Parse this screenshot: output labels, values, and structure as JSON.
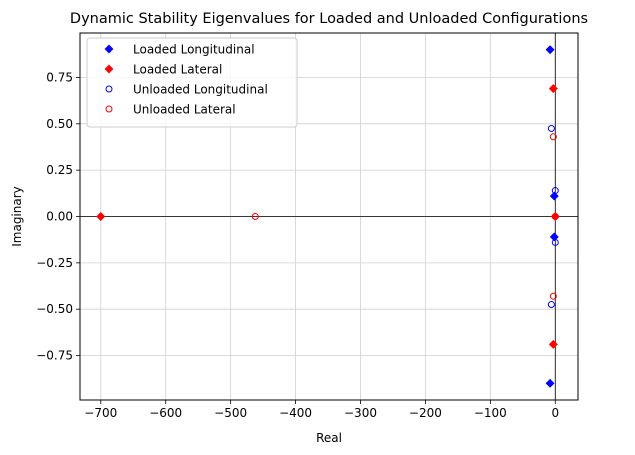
{
  "chart_data": {
    "type": "scatter",
    "title": "Dynamic Stability Eigenvalues for Loaded and Unloaded Configurations",
    "xlabel": "Real",
    "ylabel": "Imaginary",
    "xlim": [
      -732,
      35
    ],
    "ylim": [
      -0.99,
      0.99
    ],
    "xticks": [
      -700,
      -600,
      -500,
      -400,
      -300,
      -200,
      -100,
      0
    ],
    "yticks": [
      -0.75,
      -0.5,
      -0.25,
      0.0,
      0.25,
      0.5,
      0.75
    ],
    "xtick_labels": [
      "−700",
      "−600",
      "−500",
      "−400",
      "−300",
      "−200",
      "−100",
      "0"
    ],
    "ytick_labels": [
      "−0.75",
      "−0.50",
      "−0.25",
      "0.00",
      "0.25",
      "0.50",
      "0.75"
    ],
    "grid": true,
    "zero_lines": true,
    "legend_position": "top-left",
    "series": [
      {
        "name": "Loaded Longitudinal",
        "marker": "filled-diamond",
        "color": "#0000ff",
        "points": [
          [
            -8,
            0.9
          ],
          [
            -8,
            -0.9
          ],
          [
            -1.5,
            0.11
          ],
          [
            -1.5,
            -0.11
          ]
        ]
      },
      {
        "name": "Loaded Lateral",
        "marker": "filled-diamond",
        "color": "#ff0000",
        "points": [
          [
            -700,
            0.0
          ],
          [
            -3,
            0.69
          ],
          [
            -3,
            -0.69
          ],
          [
            0,
            0.0
          ]
        ]
      },
      {
        "name": "Unloaded Longitudinal",
        "marker": "hollow-circle",
        "color": "#0000ff",
        "points": [
          [
            -6,
            0.475
          ],
          [
            -6,
            -0.475
          ],
          [
            0,
            0.14
          ],
          [
            0,
            -0.14
          ]
        ]
      },
      {
        "name": "Unloaded Lateral",
        "marker": "hollow-circle",
        "color": "#ff0000",
        "points": [
          [
            -462,
            0.0
          ],
          [
            -3,
            0.43
          ],
          [
            -3,
            -0.43
          ],
          [
            0,
            0.0
          ]
        ]
      }
    ]
  }
}
